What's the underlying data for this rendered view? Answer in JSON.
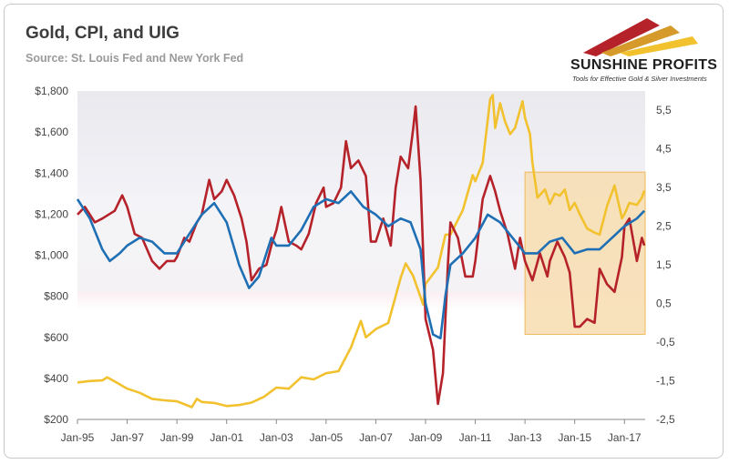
{
  "header": {
    "title": "Gold, CPI, and UIG",
    "subtitle": "Source: St. Louis Fed and New York Fed"
  },
  "logo": {
    "name": "SUNSHINE PROFITS",
    "tagline": "Tools for Effective Gold & Silver Investments"
  },
  "colors": {
    "gold": "#f2c12e",
    "cpi": "#b5222a",
    "uig": "#1f6fb5",
    "highlight": "#f7ddb0",
    "highlight_border": "#f0b85a"
  },
  "chart_data": {
    "type": "line",
    "title": "Gold, CPI, and UIG",
    "x_range": [
      1995.0,
      2017.833
    ],
    "x_ticks": [
      {
        "v": 1995,
        "label": "Jan-95"
      },
      {
        "v": 1997,
        "label": "Jan-97"
      },
      {
        "v": 1999,
        "label": "Jan-99"
      },
      {
        "v": 2001,
        "label": "Jan-01"
      },
      {
        "v": 2003,
        "label": "Jan-03"
      },
      {
        "v": 2005,
        "label": "Jan-05"
      },
      {
        "v": 2007,
        "label": "Jan-07"
      },
      {
        "v": 2009,
        "label": "Jan-09"
      },
      {
        "v": 2011,
        "label": "Jan-11"
      },
      {
        "v": 2013,
        "label": "Jan-13"
      },
      {
        "v": 2015,
        "label": "Jan-15"
      },
      {
        "v": 2017,
        "label": "Jan-17"
      }
    ],
    "y_left": {
      "range": [
        200,
        1800
      ],
      "ticks": [
        200,
        400,
        600,
        800,
        1000,
        1200,
        1400,
        1600,
        1800
      ],
      "tick_labels": [
        "$200",
        "$400",
        "$600",
        "$800",
        "$1,000",
        "$1,200",
        "$1,400",
        "$1,600",
        "$1,800"
      ]
    },
    "y_right": {
      "range": [
        -2.5,
        6.0
      ],
      "ticks": [
        -2.5,
        -1.5,
        -0.5,
        0.5,
        1.5,
        2.5,
        3.5,
        4.5,
        5.5
      ],
      "tick_labels": [
        "-2,5",
        "-1,5",
        "-0,5",
        "0,5",
        "1,5",
        "2,5",
        "3,5",
        "4,5",
        "5,5"
      ]
    },
    "highlight_region": {
      "x": [
        2013.0,
        2017.833
      ],
      "y_right": [
        -0.3,
        3.9
      ]
    },
    "series": [
      {
        "key": "gold",
        "axis": "left",
        "points": [
          [
            1995.0,
            380
          ],
          [
            1995.5,
            387
          ],
          [
            1996.0,
            390
          ],
          [
            1996.2,
            405
          ],
          [
            1996.5,
            385
          ],
          [
            1997.0,
            350
          ],
          [
            1997.5,
            330
          ],
          [
            1998.0,
            300
          ],
          [
            1998.5,
            293
          ],
          [
            1999.0,
            288
          ],
          [
            1999.6,
            260
          ],
          [
            1999.8,
            300
          ],
          [
            2000.0,
            285
          ],
          [
            2000.5,
            280
          ],
          [
            2001.0,
            265
          ],
          [
            2001.5,
            270
          ],
          [
            2002.0,
            282
          ],
          [
            2002.5,
            310
          ],
          [
            2003.0,
            355
          ],
          [
            2003.5,
            350
          ],
          [
            2004.0,
            405
          ],
          [
            2004.5,
            395
          ],
          [
            2005.0,
            425
          ],
          [
            2005.5,
            435
          ],
          [
            2006.0,
            550
          ],
          [
            2006.4,
            680
          ],
          [
            2006.6,
            600
          ],
          [
            2007.0,
            640
          ],
          [
            2007.5,
            670
          ],
          [
            2008.0,
            890
          ],
          [
            2008.2,
            960
          ],
          [
            2008.5,
            900
          ],
          [
            2008.9,
            760
          ],
          [
            2009.0,
            860
          ],
          [
            2009.5,
            940
          ],
          [
            2009.8,
            1100
          ],
          [
            2010.0,
            1100
          ],
          [
            2010.5,
            1220
          ],
          [
            2010.9,
            1390
          ],
          [
            2011.0,
            1360
          ],
          [
            2011.3,
            1450
          ],
          [
            2011.6,
            1760
          ],
          [
            2011.7,
            1780
          ],
          [
            2011.8,
            1620
          ],
          [
            2012.0,
            1740
          ],
          [
            2012.2,
            1650
          ],
          [
            2012.4,
            1590
          ],
          [
            2012.6,
            1620
          ],
          [
            2012.9,
            1750
          ],
          [
            2013.0,
            1670
          ],
          [
            2013.2,
            1590
          ],
          [
            2013.3,
            1450
          ],
          [
            2013.5,
            1280
          ],
          [
            2013.8,
            1320
          ],
          [
            2014.0,
            1250
          ],
          [
            2014.2,
            1300
          ],
          [
            2014.4,
            1290
          ],
          [
            2014.6,
            1320
          ],
          [
            2014.8,
            1220
          ],
          [
            2015.0,
            1255
          ],
          [
            2015.2,
            1200
          ],
          [
            2015.5,
            1130
          ],
          [
            2015.8,
            1110
          ],
          [
            2016.0,
            1100
          ],
          [
            2016.3,
            1240
          ],
          [
            2016.6,
            1340
          ],
          [
            2016.9,
            1180
          ],
          [
            2017.0,
            1200
          ],
          [
            2017.2,
            1255
          ],
          [
            2017.5,
            1245
          ],
          [
            2017.7,
            1280
          ],
          [
            2017.8,
            1315
          ]
        ]
      },
      {
        "key": "cpi",
        "axis": "right",
        "points": [
          [
            1995.0,
            2.8
          ],
          [
            1995.3,
            3.0
          ],
          [
            1995.7,
            2.6
          ],
          [
            1996.0,
            2.7
          ],
          [
            1996.5,
            2.9
          ],
          [
            1996.8,
            3.3
          ],
          [
            1997.0,
            3.0
          ],
          [
            1997.3,
            2.3
          ],
          [
            1997.6,
            2.2
          ],
          [
            1998.0,
            1.6
          ],
          [
            1998.3,
            1.4
          ],
          [
            1998.6,
            1.6
          ],
          [
            1998.9,
            1.6
          ],
          [
            1999.0,
            1.7
          ],
          [
            1999.3,
            2.2
          ],
          [
            1999.5,
            2.1
          ],
          [
            1999.8,
            2.6
          ],
          [
            2000.0,
            2.8
          ],
          [
            2000.3,
            3.7
          ],
          [
            2000.5,
            3.2
          ],
          [
            2000.8,
            3.4
          ],
          [
            2001.0,
            3.7
          ],
          [
            2001.3,
            3.3
          ],
          [
            2001.6,
            2.7
          ],
          [
            2001.8,
            2.1
          ],
          [
            2002.0,
            1.1
          ],
          [
            2002.3,
            1.4
          ],
          [
            2002.6,
            1.5
          ],
          [
            2002.8,
            2.0
          ],
          [
            2003.0,
            2.4
          ],
          [
            2003.2,
            3.0
          ],
          [
            2003.5,
            2.1
          ],
          [
            2003.8,
            2.0
          ],
          [
            2004.0,
            1.9
          ],
          [
            2004.3,
            2.3
          ],
          [
            2004.6,
            3.1
          ],
          [
            2004.9,
            3.5
          ],
          [
            2005.0,
            3.0
          ],
          [
            2005.3,
            3.1
          ],
          [
            2005.6,
            3.5
          ],
          [
            2005.8,
            4.7
          ],
          [
            2006.0,
            4.0
          ],
          [
            2006.3,
            4.2
          ],
          [
            2006.6,
            3.8
          ],
          [
            2006.8,
            2.1
          ],
          [
            2007.0,
            2.1
          ],
          [
            2007.3,
            2.7
          ],
          [
            2007.6,
            2.0
          ],
          [
            2007.8,
            3.5
          ],
          [
            2008.0,
            4.3
          ],
          [
            2008.3,
            4.0
          ],
          [
            2008.5,
            5.0
          ],
          [
            2008.6,
            5.6
          ],
          [
            2008.8,
            3.7
          ],
          [
            2009.0,
            0.1
          ],
          [
            2009.3,
            -0.7
          ],
          [
            2009.4,
            -1.4
          ],
          [
            2009.5,
            -2.1
          ],
          [
            2009.7,
            -1.3
          ],
          [
            2009.9,
            1.5
          ],
          [
            2010.0,
            2.6
          ],
          [
            2010.3,
            2.2
          ],
          [
            2010.6,
            1.2
          ],
          [
            2010.9,
            1.2
          ],
          [
            2011.0,
            1.6
          ],
          [
            2011.3,
            3.2
          ],
          [
            2011.6,
            3.8
          ],
          [
            2011.8,
            3.4
          ],
          [
            2012.0,
            2.9
          ],
          [
            2012.3,
            2.3
          ],
          [
            2012.6,
            1.4
          ],
          [
            2012.8,
            2.2
          ],
          [
            2013.0,
            1.6
          ],
          [
            2013.3,
            1.1
          ],
          [
            2013.6,
            1.8
          ],
          [
            2013.9,
            1.2
          ],
          [
            2014.0,
            1.6
          ],
          [
            2014.3,
            2.1
          ],
          [
            2014.6,
            1.7
          ],
          [
            2014.8,
            1.3
          ],
          [
            2015.0,
            -0.1
          ],
          [
            2015.2,
            -0.1
          ],
          [
            2015.5,
            0.1
          ],
          [
            2015.8,
            0.0
          ],
          [
            2016.0,
            1.4
          ],
          [
            2016.3,
            1.0
          ],
          [
            2016.6,
            0.8
          ],
          [
            2016.9,
            1.7
          ],
          [
            2017.0,
            2.5
          ],
          [
            2017.2,
            2.7
          ],
          [
            2017.5,
            1.6
          ],
          [
            2017.7,
            2.2
          ],
          [
            2017.8,
            2.0
          ]
        ]
      },
      {
        "key": "uig",
        "axis": "right",
        "points": [
          [
            1995.0,
            3.2
          ],
          [
            1995.5,
            2.7
          ],
          [
            1996.0,
            1.9
          ],
          [
            1996.3,
            1.6
          ],
          [
            1996.7,
            1.8
          ],
          [
            1997.0,
            2.0
          ],
          [
            1997.5,
            2.2
          ],
          [
            1998.0,
            2.1
          ],
          [
            1998.5,
            1.8
          ],
          [
            1999.0,
            1.8
          ],
          [
            1999.5,
            2.3
          ],
          [
            2000.0,
            2.8
          ],
          [
            2000.5,
            3.1
          ],
          [
            2001.0,
            2.6
          ],
          [
            2001.5,
            1.5
          ],
          [
            2001.9,
            0.9
          ],
          [
            2002.3,
            1.2
          ],
          [
            2002.8,
            2.2
          ],
          [
            2003.0,
            2.0
          ],
          [
            2003.5,
            2.0
          ],
          [
            2004.0,
            2.4
          ],
          [
            2004.5,
            3.0
          ],
          [
            2005.0,
            3.2
          ],
          [
            2005.5,
            3.1
          ],
          [
            2006.0,
            3.4
          ],
          [
            2006.5,
            3.0
          ],
          [
            2007.0,
            2.8
          ],
          [
            2007.5,
            2.5
          ],
          [
            2008.0,
            2.7
          ],
          [
            2008.4,
            2.6
          ],
          [
            2008.8,
            1.9
          ],
          [
            2009.0,
            0.5
          ],
          [
            2009.3,
            -0.3
          ],
          [
            2009.6,
            -0.4
          ],
          [
            2009.8,
            0.7
          ],
          [
            2010.0,
            1.5
          ],
          [
            2010.5,
            1.8
          ],
          [
            2011.0,
            2.2
          ],
          [
            2011.5,
            2.8
          ],
          [
            2012.0,
            2.6
          ],
          [
            2012.5,
            2.2
          ],
          [
            2013.0,
            1.8
          ],
          [
            2013.5,
            1.8
          ],
          [
            2014.0,
            2.1
          ],
          [
            2014.5,
            2.2
          ],
          [
            2015.0,
            1.8
          ],
          [
            2015.5,
            1.9
          ],
          [
            2016.0,
            1.9
          ],
          [
            2016.5,
            2.2
          ],
          [
            2017.0,
            2.5
          ],
          [
            2017.5,
            2.7
          ],
          [
            2017.8,
            2.9
          ]
        ]
      }
    ]
  }
}
